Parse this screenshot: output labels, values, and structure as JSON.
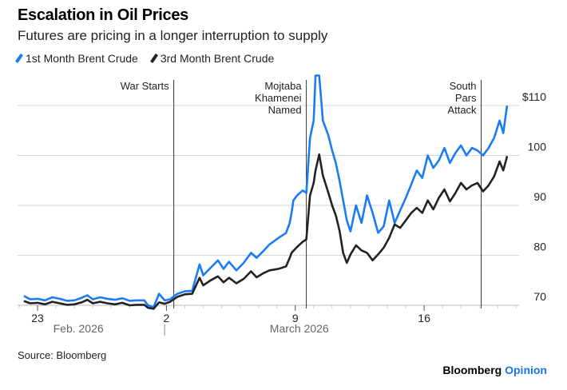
{
  "header": {
    "title": "Escalation in Oil Prices",
    "subtitle": "Futures are pricing in a longer interruption to supply"
  },
  "footer": {
    "source": "Source: Bloomberg",
    "brand_main": "Bloomberg",
    "brand_accent": "Opinion"
  },
  "colors": {
    "series1": "#1a7cf5",
    "series2": "#222222",
    "grid": "#d6d6d6",
    "annotation": "#333333"
  },
  "chart_data": {
    "type": "line",
    "title": "Escalation in Oil Prices",
    "subtitle": "Futures are pricing in a longer interruption to supply",
    "xlabel": "",
    "ylabel": "",
    "y_unit": "$",
    "ylim": [
      69,
      115
    ],
    "y_ticks": [
      {
        "value": 70,
        "label": "70"
      },
      {
        "value": 80,
        "label": "80"
      },
      {
        "value": 90,
        "label": "90"
      },
      {
        "value": 100,
        "label": "100"
      },
      {
        "value": 110,
        "label": "$110"
      }
    ],
    "x_range_days": [
      0,
      26.5
    ],
    "x_ticks": [
      {
        "day": 1,
        "label": "23"
      },
      {
        "day": 8,
        "label": "2"
      },
      {
        "day": 15,
        "label": "9"
      },
      {
        "day": 22,
        "label": "16"
      }
    ],
    "month_labels": [
      {
        "day": 3,
        "label": "Feb. 2026"
      },
      {
        "day": 15,
        "label": "March 2026"
      }
    ],
    "month_divider_day": 7.9,
    "grid": true,
    "legend_position": "top-left",
    "annotations": [
      {
        "day": 8.4,
        "label": [
          "War Starts"
        ]
      },
      {
        "day": 15.6,
        "label": [
          "Mojtaba",
          "Khamenei",
          "Named"
        ]
      },
      {
        "day": 25.1,
        "label": [
          "South",
          "Pars",
          "Attack"
        ]
      }
    ],
    "series": [
      {
        "name": "1st Month Brent Crude",
        "points": [
          [
            0.3,
            71.8
          ],
          [
            0.6,
            71.2
          ],
          [
            1.0,
            71.3
          ],
          [
            1.4,
            71.0
          ],
          [
            1.8,
            71.6
          ],
          [
            2.2,
            71.3
          ],
          [
            2.6,
            70.9
          ],
          [
            3.0,
            71.0
          ],
          [
            3.4,
            71.5
          ],
          [
            3.7,
            72.0
          ],
          [
            4.0,
            71.2
          ],
          [
            4.4,
            71.6
          ],
          [
            4.8,
            71.3
          ],
          [
            5.2,
            71.1
          ],
          [
            5.6,
            71.4
          ],
          [
            6.0,
            70.9
          ],
          [
            6.4,
            71.0
          ],
          [
            6.8,
            71.0
          ],
          [
            7.0,
            70.0
          ],
          [
            7.3,
            69.6
          ],
          [
            7.6,
            72.3
          ],
          [
            7.9,
            71.0
          ],
          [
            8.2,
            71.2
          ],
          [
            8.6,
            72.3
          ],
          [
            9.0,
            72.8
          ],
          [
            9.4,
            72.9
          ],
          [
            9.8,
            78.2
          ],
          [
            10.0,
            76.0
          ],
          [
            10.4,
            77.5
          ],
          [
            10.8,
            79.0
          ],
          [
            11.1,
            77.3
          ],
          [
            11.4,
            78.7
          ],
          [
            11.8,
            77.0
          ],
          [
            12.2,
            78.5
          ],
          [
            12.6,
            80.5
          ],
          [
            12.9,
            79.5
          ],
          [
            13.3,
            81.0
          ],
          [
            13.6,
            82.2
          ],
          [
            14.1,
            83.5
          ],
          [
            14.5,
            84.5
          ],
          [
            14.7,
            86.5
          ],
          [
            14.8,
            88.5
          ],
          [
            14.9,
            91.0
          ],
          [
            15.1,
            92.0
          ],
          [
            15.4,
            93.0
          ],
          [
            15.6,
            92.5
          ],
          [
            15.8,
            103.5
          ],
          [
            16.0,
            107.0
          ],
          [
            16.1,
            116.0
          ],
          [
            16.3,
            116.0
          ],
          [
            16.5,
            107.0
          ],
          [
            16.8,
            104.0
          ],
          [
            17.0,
            101.0
          ],
          [
            17.2,
            98.5
          ],
          [
            17.4,
            95.0
          ],
          [
            17.6,
            91.0
          ],
          [
            17.8,
            87.0
          ],
          [
            18.0,
            84.8
          ],
          [
            18.3,
            90.0
          ],
          [
            18.6,
            86.5
          ],
          [
            18.9,
            92.0
          ],
          [
            19.2,
            88.5
          ],
          [
            19.5,
            84.5
          ],
          [
            19.8,
            85.8
          ],
          [
            20.1,
            91.0
          ],
          [
            20.4,
            86.5
          ],
          [
            20.7,
            89.0
          ],
          [
            21.0,
            91.5
          ],
          [
            21.3,
            94.2
          ],
          [
            21.6,
            97.0
          ],
          [
            21.9,
            95.5
          ],
          [
            22.2,
            100.0
          ],
          [
            22.5,
            97.5
          ],
          [
            22.8,
            99.0
          ],
          [
            23.1,
            101.5
          ],
          [
            23.4,
            98.5
          ],
          [
            23.7,
            100.5
          ],
          [
            24.0,
            102.0
          ],
          [
            24.3,
            100.0
          ],
          [
            24.6,
            101.5
          ],
          [
            24.9,
            101.0
          ],
          [
            25.2,
            100.0
          ],
          [
            25.5,
            101.5
          ],
          [
            25.8,
            103.5
          ],
          [
            26.1,
            107.0
          ],
          [
            26.3,
            104.5
          ],
          [
            26.5,
            109.8
          ]
        ]
      },
      {
        "name": "3rd Month Brent Crude",
        "points": [
          [
            0.3,
            70.8
          ],
          [
            0.6,
            70.4
          ],
          [
            1.0,
            70.5
          ],
          [
            1.4,
            70.2
          ],
          [
            1.8,
            70.7
          ],
          [
            2.2,
            70.4
          ],
          [
            2.6,
            70.1
          ],
          [
            3.0,
            70.2
          ],
          [
            3.4,
            70.6
          ],
          [
            3.7,
            71.1
          ],
          [
            4.0,
            70.4
          ],
          [
            4.4,
            70.7
          ],
          [
            4.8,
            70.4
          ],
          [
            5.2,
            70.2
          ],
          [
            5.6,
            70.5
          ],
          [
            6.0,
            70.0
          ],
          [
            6.4,
            70.1
          ],
          [
            6.8,
            70.1
          ],
          [
            7.0,
            69.5
          ],
          [
            7.3,
            69.3
          ],
          [
            7.6,
            70.6
          ],
          [
            7.9,
            70.3
          ],
          [
            8.2,
            70.7
          ],
          [
            8.6,
            71.7
          ],
          [
            9.0,
            72.2
          ],
          [
            9.4,
            72.3
          ],
          [
            9.8,
            75.5
          ],
          [
            10.0,
            74.0
          ],
          [
            10.4,
            75.0
          ],
          [
            10.8,
            75.8
          ],
          [
            11.1,
            74.6
          ],
          [
            11.4,
            75.5
          ],
          [
            11.8,
            74.4
          ],
          [
            12.2,
            75.3
          ],
          [
            12.6,
            76.8
          ],
          [
            12.9,
            75.6
          ],
          [
            13.3,
            76.5
          ],
          [
            13.6,
            77.0
          ],
          [
            14.1,
            77.3
          ],
          [
            14.5,
            77.8
          ],
          [
            14.7,
            79.5
          ],
          [
            14.8,
            80.5
          ],
          [
            15.1,
            81.7
          ],
          [
            15.4,
            82.7
          ],
          [
            15.6,
            83.2
          ],
          [
            15.8,
            92.0
          ],
          [
            16.0,
            94.5
          ],
          [
            16.1,
            97.0
          ],
          [
            16.3,
            100.2
          ],
          [
            16.5,
            96.0
          ],
          [
            16.8,
            92.5
          ],
          [
            17.0,
            90.0
          ],
          [
            17.2,
            88.0
          ],
          [
            17.4,
            85.0
          ],
          [
            17.6,
            80.5
          ],
          [
            17.8,
            78.5
          ],
          [
            18.0,
            80.2
          ],
          [
            18.3,
            82.0
          ],
          [
            18.6,
            81.0
          ],
          [
            18.9,
            80.5
          ],
          [
            19.2,
            79.0
          ],
          [
            19.5,
            80.2
          ],
          [
            19.8,
            81.5
          ],
          [
            20.1,
            83.5
          ],
          [
            20.4,
            86.2
          ],
          [
            20.7,
            85.5
          ],
          [
            21.0,
            87.0
          ],
          [
            21.3,
            88.5
          ],
          [
            21.6,
            89.5
          ],
          [
            21.9,
            88.5
          ],
          [
            22.2,
            91.0
          ],
          [
            22.5,
            89.2
          ],
          [
            22.8,
            91.5
          ],
          [
            23.1,
            93.2
          ],
          [
            23.4,
            90.8
          ],
          [
            23.7,
            92.5
          ],
          [
            24.0,
            94.5
          ],
          [
            24.3,
            93.2
          ],
          [
            24.6,
            94.0
          ],
          [
            24.9,
            94.5
          ],
          [
            25.2,
            92.8
          ],
          [
            25.5,
            94.0
          ],
          [
            25.8,
            95.8
          ],
          [
            26.1,
            98.8
          ],
          [
            26.3,
            97.0
          ],
          [
            26.5,
            99.7
          ]
        ]
      }
    ]
  }
}
